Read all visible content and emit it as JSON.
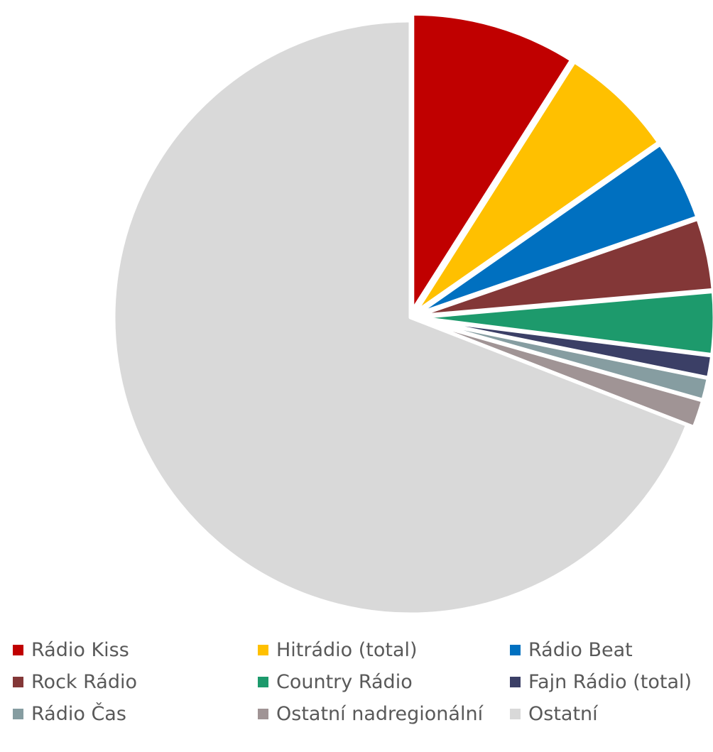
{
  "chart_data": {
    "type": "pie",
    "title": "",
    "legend_position": "bottom",
    "series": [
      {
        "name": "Rádio Kiss",
        "value": 9.0,
        "color": "#C00000"
      },
      {
        "name": "Hitrádio (total)",
        "value": 6.3,
        "color": "#FFC000"
      },
      {
        "name": "Rádio Beat",
        "value": 4.4,
        "color": "#0070C0"
      },
      {
        "name": "Rock Rádio",
        "value": 3.9,
        "color": "#833737"
      },
      {
        "name": "Country Rádio",
        "value": 3.4,
        "color": "#1D9A6C"
      },
      {
        "name": "Fajn Rádio (total)",
        "value": 1.2,
        "color": "#3B3F66"
      },
      {
        "name": "Rádio Čas",
        "value": 1.2,
        "color": "#869DA1"
      },
      {
        "name": "Ostatní nadregionální",
        "value": 1.5,
        "color": "#A09495"
      },
      {
        "name": "Ostatní",
        "value": 69.1,
        "color": "#D9D9D9"
      }
    ]
  }
}
